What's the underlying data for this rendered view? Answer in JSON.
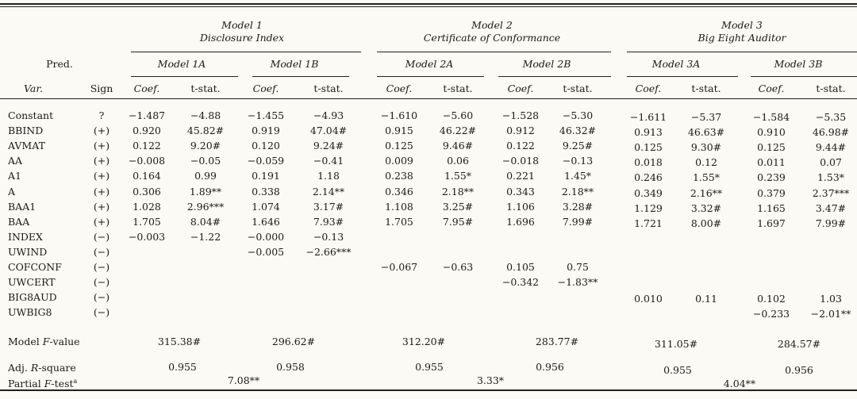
{
  "models": [
    {
      "title": "Model 1",
      "subtitle": "Disclosure Index",
      "subs": [
        {
          "name": "Model 1A"
        },
        {
          "name": "Model 1B"
        }
      ]
    },
    {
      "title": "Model 2",
      "subtitle": "Certificate of Conformance",
      "subs": [
        {
          "name": "Model 2A"
        },
        {
          "name": "Model 2B"
        }
      ]
    },
    {
      "title": "Model 3",
      "subtitle": "Big Eight Auditor",
      "subs": [
        {
          "name": "Model 3A"
        },
        {
          "name": "Model 3B"
        }
      ]
    }
  ],
  "header": {
    "pred": "Pred.",
    "var": "Var.",
    "sign": "Sign",
    "coef": "Coef.",
    "tstat": "t-stat."
  },
  "rows": [
    {
      "var": "Constant",
      "sign": "?",
      "cells": [
        [
          "−1.487",
          "−4.88"
        ],
        [
          "−1.455",
          "−4.93"
        ],
        [
          "−1.610",
          "−5.60"
        ],
        [
          "−1.528",
          "−5.30"
        ],
        [
          "−1.611",
          "−5.37"
        ],
        [
          "−1.584",
          "−5.35"
        ]
      ]
    },
    {
      "var": "BBIND",
      "sign": "(+)",
      "cells": [
        [
          "0.920",
          "45.82#"
        ],
        [
          "0.919",
          "47.04#"
        ],
        [
          "0.915",
          "46.22#"
        ],
        [
          "0.912",
          "46.32#"
        ],
        [
          "0.913",
          "46.63#"
        ],
        [
          "0.910",
          "46.98#"
        ]
      ]
    },
    {
      "var": "AVMAT",
      "sign": "(+)",
      "cells": [
        [
          "0.122",
          "9.20#"
        ],
        [
          "0.120",
          "9.24#"
        ],
        [
          "0.125",
          "9.46#"
        ],
        [
          "0.122",
          "9.25#"
        ],
        [
          "0.125",
          "9.30#"
        ],
        [
          "0.125",
          "9.44#"
        ]
      ]
    },
    {
      "var": "AA",
      "sign": "(+)",
      "cells": [
        [
          "−0.008",
          "−0.05"
        ],
        [
          "−0.059",
          "−0.41"
        ],
        [
          "0.009",
          "0.06"
        ],
        [
          "−0.018",
          "−0.13"
        ],
        [
          "0.018",
          "0.12"
        ],
        [
          "0.011",
          "0.07"
        ]
      ]
    },
    {
      "var": "A1",
      "sign": "(+)",
      "cells": [
        [
          "0.164",
          "0.99"
        ],
        [
          "0.191",
          "1.18"
        ],
        [
          "0.238",
          "1.55*"
        ],
        [
          "0.221",
          "1.45*"
        ],
        [
          "0.246",
          "1.55*"
        ],
        [
          "0.239",
          "1.53*"
        ]
      ]
    },
    {
      "var": "A",
      "sign": "(+)",
      "cells": [
        [
          "0.306",
          "1.89**"
        ],
        [
          "0.338",
          "2.14**"
        ],
        [
          "0.346",
          "2.18**"
        ],
        [
          "0.343",
          "2.18**"
        ],
        [
          "0.349",
          "2.16**"
        ],
        [
          "0.379",
          "2.37***"
        ]
      ]
    },
    {
      "var": "BAA1",
      "sign": "(+)",
      "cells": [
        [
          "1.028",
          "2.96***"
        ],
        [
          "1.074",
          "3.17#"
        ],
        [
          "1.108",
          "3.25#"
        ],
        [
          "1.106",
          "3.28#"
        ],
        [
          "1.129",
          "3.32#"
        ],
        [
          "1.165",
          "3.47#"
        ]
      ]
    },
    {
      "var": "BAA",
      "sign": "(+)",
      "cells": [
        [
          "1.705",
          "8.04#"
        ],
        [
          "1.646",
          "7.93#"
        ],
        [
          "1.705",
          "7.95#"
        ],
        [
          "1.696",
          "7.99#"
        ],
        [
          "1.721",
          "8.00#"
        ],
        [
          "1.697",
          "7.99#"
        ]
      ]
    },
    {
      "var": "INDEX",
      "sign": "(−)",
      "cells": [
        [
          "−0.003",
          "−1.22"
        ],
        [
          "−0.000",
          "−0.13"
        ],
        null,
        null,
        null,
        null
      ]
    },
    {
      "var": "UWIND",
      "sign": "(−)",
      "cells": [
        null,
        [
          "−0.005",
          "−2.66***"
        ],
        null,
        null,
        null,
        null
      ]
    },
    {
      "var": "COFCONF",
      "sign": "(−)",
      "cells": [
        null,
        null,
        [
          "−0.067",
          "−0.63"
        ],
        [
          "0.105",
          "0.75"
        ],
        null,
        null
      ]
    },
    {
      "var": "UWCERT",
      "sign": "(−)",
      "cells": [
        null,
        null,
        null,
        [
          "−0.342",
          "−1.83**"
        ],
        null,
        null
      ]
    },
    {
      "var": "BIG8AUD",
      "sign": "(−)",
      "cells": [
        null,
        null,
        null,
        null,
        [
          "0.010",
          "0.11"
        ],
        [
          "0.102",
          "1.03"
        ]
      ]
    },
    {
      "var": "UWBIG8",
      "sign": "(−)",
      "cells": [
        null,
        null,
        null,
        null,
        null,
        [
          "−0.233",
          "−2.01**"
        ]
      ]
    }
  ],
  "summary": {
    "fvalue_label_pre": "Model ",
    "fvalue_label_it": "F",
    "fvalue_label_post": "-value",
    "fvalues": [
      "315.38#",
      "296.62#",
      "312.20#",
      "283.77#",
      "311.05#",
      "284.57#"
    ],
    "adj_label_pre": "Adj. ",
    "adj_label_it": "R",
    "adj_label_post": "-square",
    "adj": [
      "0.955",
      "0.958",
      "0.955",
      "0.956",
      "0.955",
      "0.956"
    ],
    "partial_label_pre": "Partial ",
    "partial_label_it": "F",
    "partial_label_post": "-test",
    "partial_label_sup": "a",
    "partial": [
      "7.08**",
      "3.33*",
      "4.04**"
    ]
  }
}
